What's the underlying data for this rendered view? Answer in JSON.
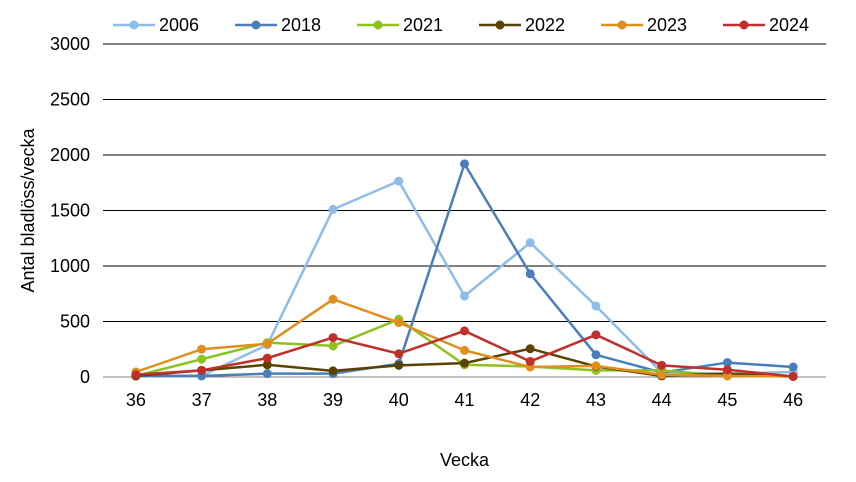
{
  "chart_data": {
    "type": "line",
    "xlabel": "Vecka",
    "ylabel": "Antal bladlöss/vecka",
    "x": [
      36,
      37,
      38,
      39,
      40,
      41,
      42,
      43,
      44,
      45,
      46
    ],
    "ylim": [
      0,
      3000
    ],
    "yticks": [
      0,
      500,
      1000,
      1500,
      2000,
      2500,
      3000
    ],
    "grid": true,
    "legend": "top",
    "series": [
      {
        "name": "2006",
        "color": "#8DBDE8",
        "values": [
          10,
          10,
          290,
          1510,
          1765,
          730,
          1210,
          640,
          40,
          30,
          45
        ]
      },
      {
        "name": "2018",
        "color": "#4A7EBB",
        "values": [
          10,
          10,
          30,
          30,
          120,
          1920,
          930,
          200,
          40,
          130,
          90
        ]
      },
      {
        "name": "2021",
        "color": "#8DC21F",
        "values": [
          10,
          160,
          310,
          280,
          520,
          110,
          95,
          60,
          60,
          10,
          5
        ]
      },
      {
        "name": "2022",
        "color": "#5C4200",
        "values": [
          10,
          60,
          110,
          55,
          105,
          125,
          255,
          95,
          10,
          30,
          5
        ]
      },
      {
        "name": "2023",
        "color": "#E08E1E",
        "values": [
          45,
          250,
          300,
          700,
          490,
          240,
          90,
          100,
          20,
          10,
          5
        ]
      },
      {
        "name": "2024",
        "color": "#C0302B",
        "values": [
          20,
          60,
          170,
          355,
          210,
          415,
          140,
          380,
          105,
          65,
          5
        ]
      }
    ]
  }
}
